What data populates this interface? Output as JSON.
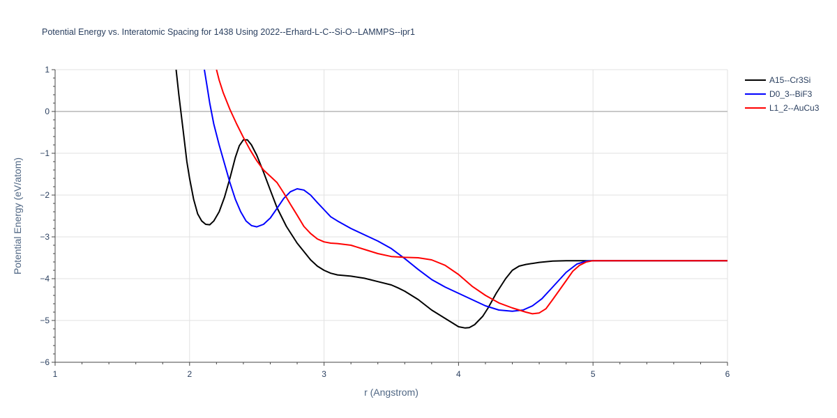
{
  "chart_data": {
    "type": "line",
    "title": "Potential Energy vs. Interatomic Spacing for 1438 Using 2022--Erhard-L-C--Si-O--LAMMPS--ipr1",
    "xlabel": "r (Angstrom)",
    "ylabel": "Potential Energy (eV/atom)",
    "xlim": [
      1,
      6
    ],
    "ylim": [
      -6,
      1
    ],
    "xticks": [
      1,
      2,
      3,
      4,
      5,
      6
    ],
    "xtick_labels": [
      "1",
      "2",
      "3",
      "4",
      "5",
      "6"
    ],
    "yticks": [
      1,
      0,
      -1,
      -2,
      -3,
      -4,
      -5,
      -6
    ],
    "ytick_labels": [
      "1",
      "0",
      "−1",
      "−2",
      "−3",
      "−4",
      "−5",
      "−6"
    ],
    "grid": true,
    "zero_line": true,
    "legend_position": "top-right",
    "series": [
      {
        "name": "A15--Cr3Si",
        "color": "#000000",
        "points": [
          [
            1.9,
            1.0
          ],
          [
            1.92,
            0.4
          ],
          [
            1.95,
            -0.4
          ],
          [
            1.98,
            -1.2
          ],
          [
            2.0,
            -1.6
          ],
          [
            2.03,
            -2.1
          ],
          [
            2.06,
            -2.45
          ],
          [
            2.09,
            -2.62
          ],
          [
            2.12,
            -2.7
          ],
          [
            2.15,
            -2.71
          ],
          [
            2.18,
            -2.62
          ],
          [
            2.22,
            -2.4
          ],
          [
            2.26,
            -2.05
          ],
          [
            2.3,
            -1.6
          ],
          [
            2.34,
            -1.1
          ],
          [
            2.37,
            -0.82
          ],
          [
            2.4,
            -0.68
          ],
          [
            2.43,
            -0.68
          ],
          [
            2.46,
            -0.8
          ],
          [
            2.5,
            -1.05
          ],
          [
            2.55,
            -1.45
          ],
          [
            2.6,
            -1.88
          ],
          [
            2.65,
            -2.3
          ],
          [
            2.72,
            -2.75
          ],
          [
            2.8,
            -3.15
          ],
          [
            2.9,
            -3.55
          ],
          [
            2.95,
            -3.7
          ],
          [
            3.0,
            -3.8
          ],
          [
            3.05,
            -3.87
          ],
          [
            3.1,
            -3.91
          ],
          [
            3.2,
            -3.94
          ],
          [
            3.3,
            -3.99
          ],
          [
            3.4,
            -4.07
          ],
          [
            3.5,
            -4.15
          ],
          [
            3.55,
            -4.22
          ],
          [
            3.6,
            -4.3
          ],
          [
            3.7,
            -4.5
          ],
          [
            3.8,
            -4.75
          ],
          [
            3.9,
            -4.95
          ],
          [
            3.95,
            -5.05
          ],
          [
            4.0,
            -5.15
          ],
          [
            4.05,
            -5.18
          ],
          [
            4.08,
            -5.17
          ],
          [
            4.12,
            -5.1
          ],
          [
            4.18,
            -4.9
          ],
          [
            4.22,
            -4.7
          ],
          [
            4.28,
            -4.35
          ],
          [
            4.35,
            -4.0
          ],
          [
            4.4,
            -3.8
          ],
          [
            4.45,
            -3.7
          ],
          [
            4.5,
            -3.66
          ],
          [
            4.6,
            -3.61
          ],
          [
            4.7,
            -3.58
          ],
          [
            4.8,
            -3.57
          ],
          [
            4.9,
            -3.57
          ],
          [
            5.0,
            -3.57
          ],
          [
            6.0,
            -3.57
          ]
        ]
      },
      {
        "name": "D0_3--BiF3",
        "color": "#0000ff",
        "points": [
          [
            2.11,
            1.0
          ],
          [
            2.13,
            0.6
          ],
          [
            2.15,
            0.2
          ],
          [
            2.18,
            -0.3
          ],
          [
            2.22,
            -0.8
          ],
          [
            2.26,
            -1.25
          ],
          [
            2.3,
            -1.7
          ],
          [
            2.34,
            -2.1
          ],
          [
            2.38,
            -2.4
          ],
          [
            2.42,
            -2.62
          ],
          [
            2.46,
            -2.73
          ],
          [
            2.5,
            -2.76
          ],
          [
            2.55,
            -2.7
          ],
          [
            2.6,
            -2.55
          ],
          [
            2.65,
            -2.32
          ],
          [
            2.7,
            -2.08
          ],
          [
            2.75,
            -1.92
          ],
          [
            2.8,
            -1.85
          ],
          [
            2.85,
            -1.88
          ],
          [
            2.9,
            -2.0
          ],
          [
            2.95,
            -2.18
          ],
          [
            3.0,
            -2.35
          ],
          [
            3.05,
            -2.52
          ],
          [
            3.1,
            -2.62
          ],
          [
            3.2,
            -2.8
          ],
          [
            3.3,
            -2.95
          ],
          [
            3.4,
            -3.1
          ],
          [
            3.5,
            -3.28
          ],
          [
            3.6,
            -3.52
          ],
          [
            3.7,
            -3.78
          ],
          [
            3.8,
            -4.02
          ],
          [
            3.9,
            -4.2
          ],
          [
            4.0,
            -4.35
          ],
          [
            4.1,
            -4.5
          ],
          [
            4.2,
            -4.65
          ],
          [
            4.3,
            -4.75
          ],
          [
            4.4,
            -4.78
          ],
          [
            4.48,
            -4.75
          ],
          [
            4.55,
            -4.65
          ],
          [
            4.62,
            -4.48
          ],
          [
            4.7,
            -4.2
          ],
          [
            4.8,
            -3.85
          ],
          [
            4.88,
            -3.65
          ],
          [
            4.95,
            -3.58
          ],
          [
            5.0,
            -3.57
          ],
          [
            6.0,
            -3.57
          ]
        ]
      },
      {
        "name": "L1_2--AuCu3",
        "color": "#ff0000",
        "points": [
          [
            2.2,
            1.0
          ],
          [
            2.22,
            0.75
          ],
          [
            2.25,
            0.45
          ],
          [
            2.3,
            0.05
          ],
          [
            2.35,
            -0.3
          ],
          [
            2.4,
            -0.62
          ],
          [
            2.45,
            -0.92
          ],
          [
            2.5,
            -1.18
          ],
          [
            2.55,
            -1.4
          ],
          [
            2.6,
            -1.55
          ],
          [
            2.65,
            -1.7
          ],
          [
            2.7,
            -1.95
          ],
          [
            2.75,
            -2.22
          ],
          [
            2.8,
            -2.48
          ],
          [
            2.85,
            -2.75
          ],
          [
            2.9,
            -2.92
          ],
          [
            2.95,
            -3.05
          ],
          [
            3.0,
            -3.12
          ],
          [
            3.05,
            -3.15
          ],
          [
            3.1,
            -3.16
          ],
          [
            3.2,
            -3.2
          ],
          [
            3.3,
            -3.3
          ],
          [
            3.4,
            -3.4
          ],
          [
            3.5,
            -3.47
          ],
          [
            3.6,
            -3.49
          ],
          [
            3.7,
            -3.5
          ],
          [
            3.8,
            -3.55
          ],
          [
            3.9,
            -3.68
          ],
          [
            4.0,
            -3.9
          ],
          [
            4.1,
            -4.18
          ],
          [
            4.2,
            -4.4
          ],
          [
            4.3,
            -4.58
          ],
          [
            4.4,
            -4.7
          ],
          [
            4.45,
            -4.75
          ],
          [
            4.5,
            -4.8
          ],
          [
            4.55,
            -4.84
          ],
          [
            4.6,
            -4.82
          ],
          [
            4.65,
            -4.72
          ],
          [
            4.7,
            -4.5
          ],
          [
            4.8,
            -4.05
          ],
          [
            4.85,
            -3.82
          ],
          [
            4.9,
            -3.68
          ],
          [
            4.95,
            -3.6
          ],
          [
            5.0,
            -3.57
          ],
          [
            6.0,
            -3.57
          ]
        ]
      }
    ]
  }
}
